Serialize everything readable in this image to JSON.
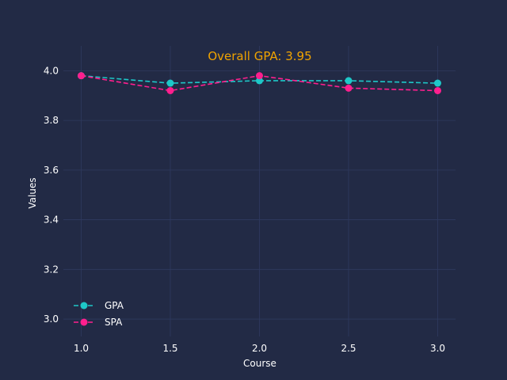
{
  "chart_data": {
    "type": "line",
    "title": "",
    "annotation": "Overall GPA: 3.95",
    "xlabel": "Course",
    "ylabel": "Values",
    "x": [
      1.0,
      1.5,
      2.0,
      2.5,
      3.0
    ],
    "xlim": [
      0.9,
      3.1
    ],
    "ylim": [
      2.93,
      4.1
    ],
    "xticks": [
      1.0,
      1.5,
      2.0,
      2.5,
      3.0
    ],
    "xtick_labels": [
      "1.0",
      "1.5",
      "2.0",
      "2.5",
      "3.0"
    ],
    "yticks": [
      3.0,
      3.2,
      3.4,
      3.6,
      3.8,
      4.0
    ],
    "ytick_labels": [
      "3.0",
      "3.2",
      "3.4",
      "3.6",
      "3.8",
      "4.0"
    ],
    "grid": true,
    "legend_position": "bottom-left",
    "series": [
      {
        "name": "GPA",
        "color": "#1ec8c8",
        "line_style": "dashed",
        "marker": "circle",
        "values": [
          3.98,
          3.95,
          3.96,
          3.96,
          3.95
        ]
      },
      {
        "name": "SPA",
        "color": "#ff1f8e",
        "line_style": "dashed",
        "marker": "circle",
        "values": [
          3.98,
          3.92,
          3.98,
          3.93,
          3.92
        ]
      }
    ],
    "colors": {
      "background": "#222a45",
      "grid": "#2f3a5f",
      "text": "#ffffff",
      "annotation": "#f0a300"
    }
  }
}
